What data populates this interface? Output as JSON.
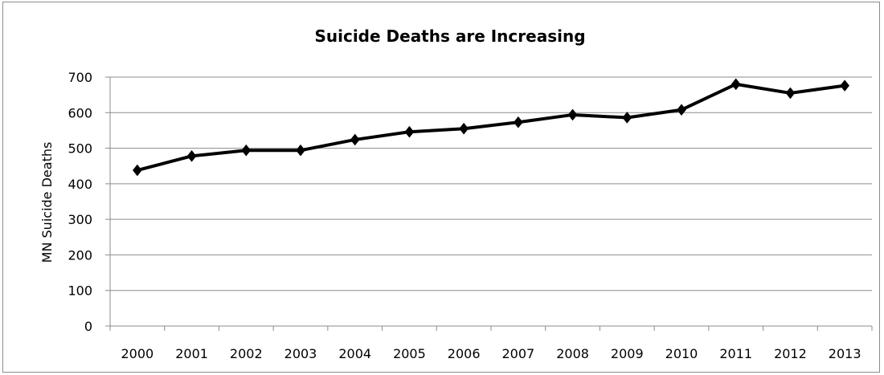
{
  "chart_data": {
    "type": "line",
    "title": "Suicide Deaths are Increasing",
    "xlabel": "",
    "ylabel": "MN Suicide Deaths",
    "x": [
      "2000",
      "2001",
      "2002",
      "2003",
      "2004",
      "2005",
      "2006",
      "2007",
      "2008",
      "2009",
      "2010",
      "2011",
      "2012",
      "2013"
    ],
    "series": [
      {
        "values": [
          438,
          478,
          494,
          494,
          524,
          546,
          555,
          573,
          594,
          586,
          608,
          680,
          655,
          676
        ],
        "color": "#000000",
        "marker": "diamond"
      }
    ],
    "ylim": [
      0,
      700
    ],
    "yticks": [
      0,
      100,
      200,
      300,
      400,
      500,
      600,
      700
    ],
    "grid": true,
    "legend": "none"
  }
}
